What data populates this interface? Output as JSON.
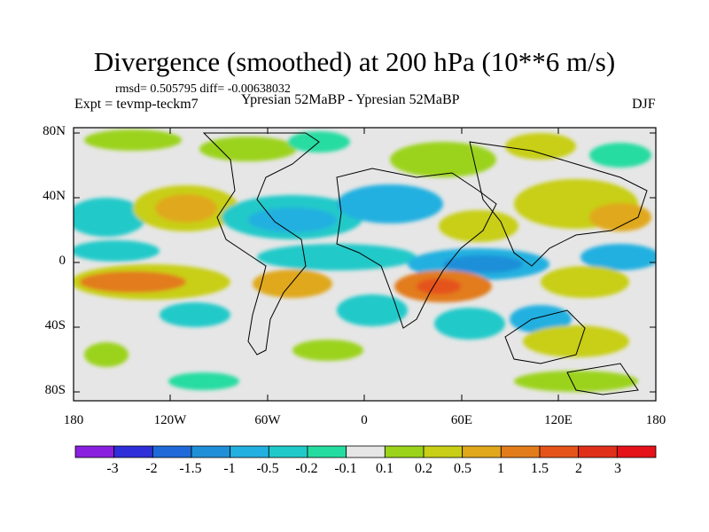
{
  "title": "Divergence (smoothed) at 200 hPa (10**6 m/s)",
  "stats": "rmsd= 0.505795 diff= -0.00638032",
  "experiment": "Expt = tevmp-teckm7",
  "comparison": "Ypresian  52MaBP - Ypresian  52MaBP",
  "season": "DJF",
  "lat_labels": [
    "80N",
    "40N",
    "0",
    "40S",
    "80S"
  ],
  "lon_labels": [
    "180",
    "120W",
    "60W",
    "0",
    "60E",
    "120E",
    "180"
  ],
  "colorbar": {
    "labels": [
      "-3",
      "-2",
      "-1.5",
      "-1",
      "-0.5",
      "-0.2",
      "-0.1",
      "0.1",
      "0.2",
      "0.5",
      "1",
      "1.5",
      "2",
      "3"
    ],
    "colors": [
      "#8a1fe0",
      "#2f2fd9",
      "#1f6ad8",
      "#1f8fd8",
      "#21b0e0",
      "#20c9c9",
      "#25dca0",
      "#e6e6e6",
      "#9bd31a",
      "#c8cf16",
      "#e0a81a",
      "#e27c1a",
      "#e5531a",
      "#e0301a",
      "#e6121a"
    ]
  },
  "map_colors": {
    "land_outline": "#000000",
    "neutral": "#e6e6e6"
  }
}
